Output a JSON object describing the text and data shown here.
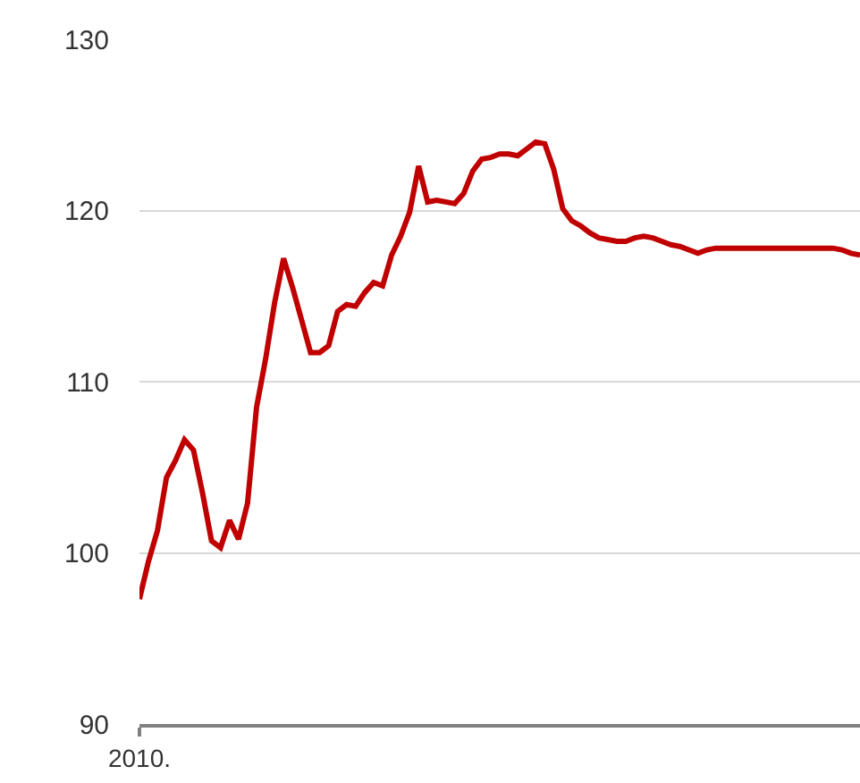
{
  "chart_data": {
    "type": "line",
    "categories": [
      "2010.",
      null,
      null,
      null,
      null,
      null,
      null,
      null,
      null,
      null,
      null,
      null,
      null,
      null,
      null,
      null,
      null,
      null,
      null,
      null,
      null,
      null,
      null,
      null,
      null,
      null,
      null,
      null,
      null,
      null,
      null,
      null,
      null,
      null,
      null,
      null,
      null,
      null,
      null,
      null,
      null,
      null,
      null,
      null,
      null,
      null,
      null,
      null,
      null,
      null,
      null,
      null,
      null,
      null,
      null,
      null,
      null,
      null,
      null,
      null,
      null,
      null,
      null,
      null,
      null,
      null,
      null,
      null,
      null,
      null,
      null,
      null,
      null,
      null,
      null,
      null,
      null,
      null,
      null,
      null,
      null
    ],
    "series": [
      {
        "color": "#c00000",
        "values": [
          97.3,
          99.5,
          101.3,
          104.4,
          105.4,
          106.6,
          106.0,
          103.5,
          100.7,
          100.3,
          101.9,
          100.8,
          102.9,
          108.5,
          111.3,
          114.6,
          117.2,
          115.5,
          113.6,
          111.7,
          111.7,
          112.1,
          114.1,
          114.5,
          114.4,
          115.2,
          115.8,
          115.6,
          117.4,
          118.5,
          119.9,
          122.6,
          120.5,
          120.6,
          120.5,
          120.4,
          121.0,
          122.3,
          123.0,
          123.1,
          123.3,
          123.3,
          123.2,
          123.6,
          124.0,
          123.9,
          122.4,
          120.1,
          119.4,
          119.1,
          118.7,
          118.4,
          118.3,
          118.2,
          118.2,
          118.4,
          118.5,
          118.4,
          118.2,
          118.0,
          117.9,
          117.7,
          117.5,
          117.7,
          117.8,
          117.8,
          117.8,
          117.8,
          117.8,
          117.8,
          117.8,
          117.8,
          117.8,
          117.8,
          117.8,
          117.8,
          117.8,
          117.8,
          117.7,
          117.5,
          117.4
        ]
      }
    ],
    "ylim": [
      90,
      130
    ],
    "yticks": [
      90,
      100,
      110,
      120,
      130
    ],
    "grid": "y",
    "marker": "none",
    "line_style": "solid"
  }
}
